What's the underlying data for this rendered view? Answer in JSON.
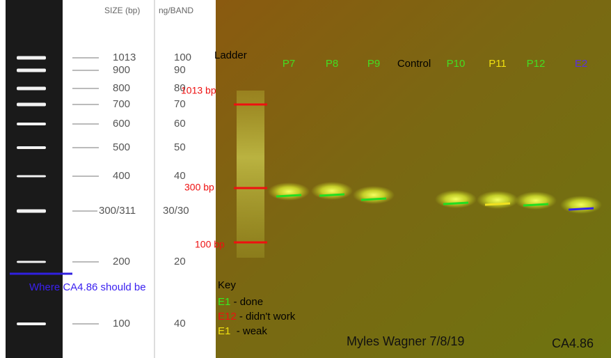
{
  "ladder": {
    "size_header": "SIZE (bp)",
    "ng_header": "ng/BAND",
    "sizes": [
      "1013",
      "900",
      "800",
      "700",
      "600",
      "500",
      "400",
      "300/311",
      "200",
      "100"
    ],
    "ng": [
      "100",
      "90",
      "80",
      "70",
      "60",
      "50",
      "40",
      "30/30",
      "20",
      "40"
    ],
    "marker_note": "Where CA4.86 should be"
  },
  "gel": {
    "lanes": [
      "Ladder",
      "P7",
      "P8",
      "P9",
      "Control",
      "P10",
      "P11",
      "P12",
      "E2"
    ],
    "size_marks": [
      "1013 bp",
      "300 bp",
      "100 bp"
    ],
    "key": {
      "title": "Key",
      "items": [
        {
          "code": "E1",
          "text": " - done"
        },
        {
          "code": "E12",
          "text": " - didn't work"
        },
        {
          "code": "E1",
          "text": "  - weak"
        }
      ]
    },
    "author": "Myles Wagner 7/8/19",
    "sample": "CA4.86"
  }
}
